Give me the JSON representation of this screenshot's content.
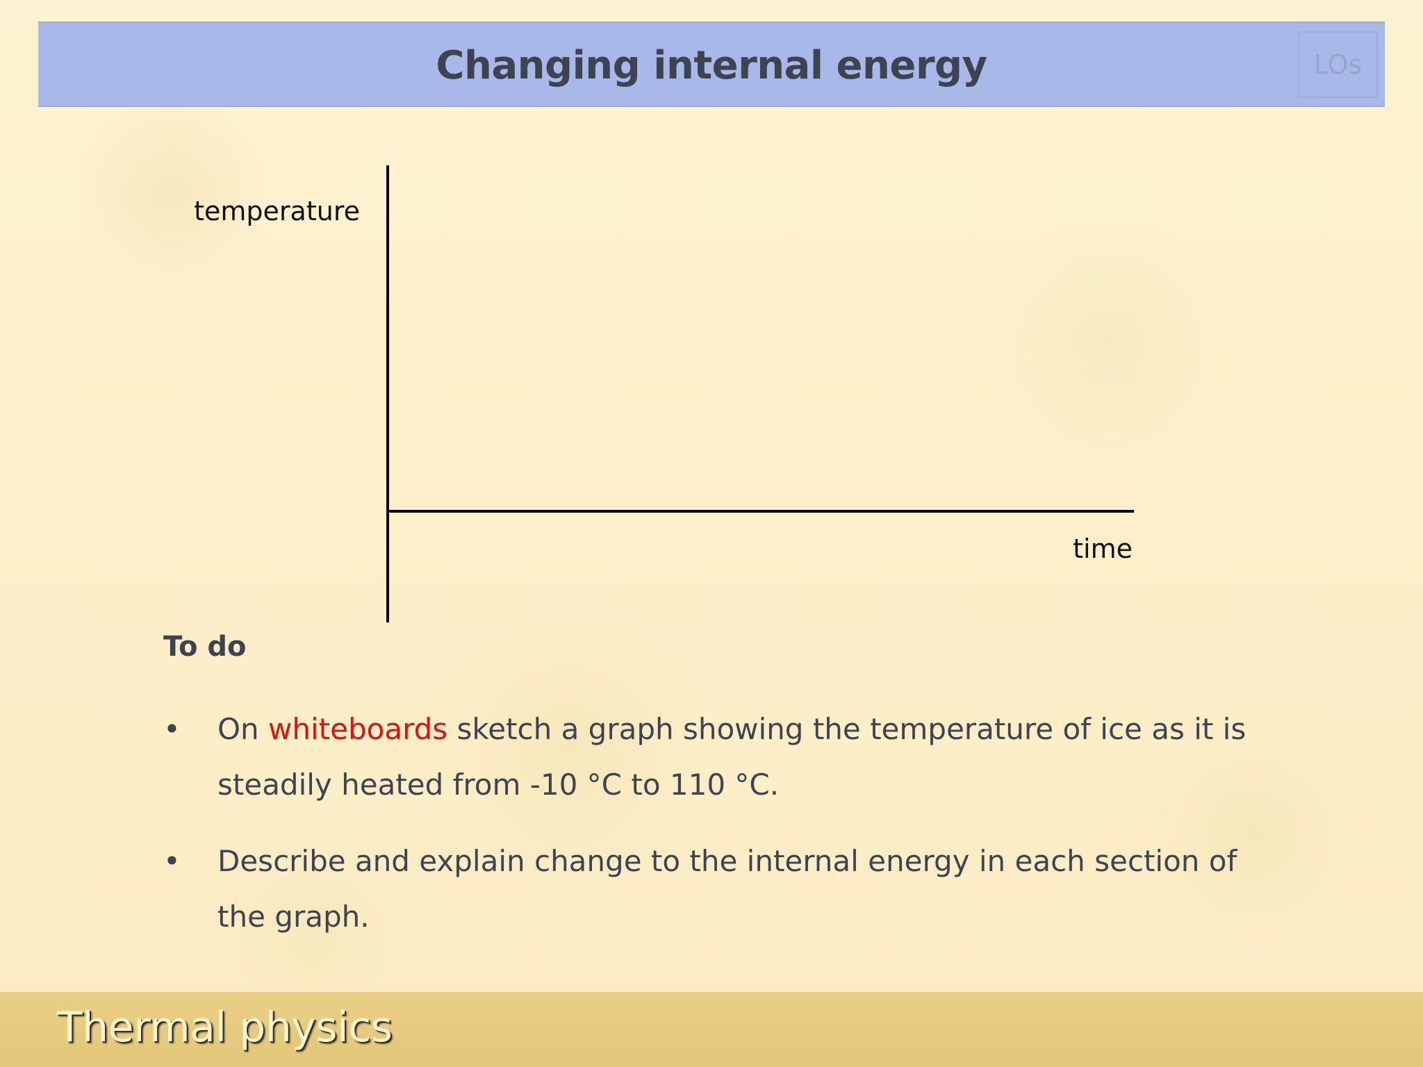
{
  "slide": {
    "title": "Changing internal energy",
    "los_label": "LOs"
  },
  "graph": {
    "y_label": "temperature",
    "x_label": "time"
  },
  "todo": {
    "heading": "To do",
    "items": [
      {
        "before": "On ",
        "highlight": "whiteboards",
        "after": " sketch a graph showing the temperature of ice as it is steadily heated from -10 °C to 110 °C."
      },
      {
        "text": "Describe and explain change to the internal energy in each section of the graph."
      }
    ],
    "bullet_char": "•",
    "highlight_color": "#e01010"
  },
  "footer": {
    "label": "Thermal physics"
  }
}
